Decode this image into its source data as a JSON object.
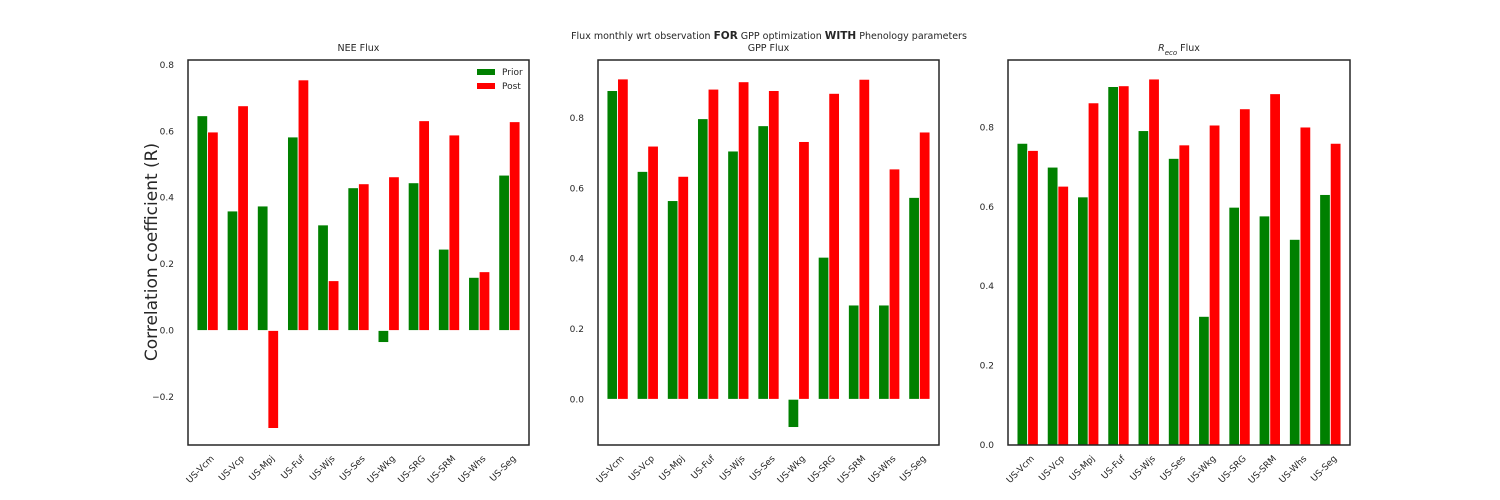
{
  "figure": {
    "suptitle": {
      "parts": [
        {
          "text": "Flux monthly wrt observation ",
          "bold": false
        },
        {
          "text": "FOR",
          "bold": true
        },
        {
          "text": " GPP optimization ",
          "bold": false
        },
        {
          "text": "WITH",
          "bold": true
        },
        {
          "text": " Phenology parameters",
          "bold": false
        }
      ]
    },
    "colors": {
      "prior": "#008000",
      "post": "#ff0000",
      "axes": "#262626"
    }
  },
  "chart_data": [
    {
      "type": "bar",
      "title": "NEE Flux",
      "ylabel": "Correlation coefficient (R)",
      "xlabel": "",
      "categories": [
        "US-Vcm",
        "US-Vcp",
        "US-Mpj",
        "US-Fuf",
        "US-Wjs",
        "US-Ses",
        "US-Wkg",
        "US-SRG",
        "US-SRM",
        "US-Whs",
        "US-Seg"
      ],
      "series": [
        {
          "name": "Prior",
          "color": "#008000",
          "values": [
            0.647,
            0.36,
            0.375,
            0.583,
            0.318,
            0.43,
            -0.036,
            0.445,
            0.245,
            0.16,
            0.468
          ]
        },
        {
          "name": "Post",
          "color": "#ff0000",
          "values": [
            0.598,
            0.677,
            -0.295,
            0.755,
            0.15,
            0.442,
            0.463,
            0.632,
            0.589,
            0.177,
            0.629
          ]
        }
      ],
      "ylim": [
        -0.345,
        0.815
      ],
      "yticks": [
        -0.2,
        0.0,
        0.2,
        0.4,
        0.6,
        0.8
      ],
      "ytick_labels": [
        "−0.2",
        "0.0",
        "0.2",
        "0.4",
        "0.6",
        "0.8"
      ],
      "legend": {
        "placement": "top-right",
        "entries": [
          "Prior",
          "Post"
        ]
      },
      "grid": false
    },
    {
      "type": "bar",
      "title": "GPP Flux",
      "ylabel": "",
      "xlabel": "",
      "categories": [
        "US-Vcm",
        "US-Vcp",
        "US-Mpj",
        "US-Fuf",
        "US-Wjs",
        "US-Ses",
        "US-Wkg",
        "US-SRG",
        "US-SRM",
        "US-Whs",
        "US-Seg"
      ],
      "series": [
        {
          "name": "Prior",
          "color": "#008000",
          "values": [
            0.878,
            0.648,
            0.565,
            0.798,
            0.706,
            0.778,
            -0.08,
            0.404,
            0.268,
            0.268,
            0.574
          ]
        },
        {
          "name": "Post",
          "color": "#ff0000",
          "values": [
            0.911,
            0.72,
            0.634,
            0.882,
            0.903,
            0.878,
            0.733,
            0.87,
            0.91,
            0.655,
            0.76
          ]
        }
      ],
      "ylim": [
        -0.13,
        0.965
      ],
      "yticks": [
        0.0,
        0.2,
        0.4,
        0.6,
        0.8
      ],
      "ytick_labels": [
        "0.0",
        "0.2",
        "0.4",
        "0.6",
        "0.8"
      ],
      "legend": null,
      "grid": false
    },
    {
      "type": "bar",
      "title_parts": [
        {
          "text": "R",
          "italic": true,
          "sub": false
        },
        {
          "text": "eco",
          "italic": true,
          "sub": true
        },
        {
          "text": " Flux",
          "italic": false,
          "sub": false
        }
      ],
      "ylabel": "",
      "xlabel": "",
      "categories": [
        "US-Vcm",
        "US-Vcp",
        "US-Mpj",
        "US-Fuf",
        "US-Wjs",
        "US-Ses",
        "US-Wkg",
        "US-SRG",
        "US-SRM",
        "US-Whs",
        "US-Seg"
      ],
      "series": [
        {
          "name": "Prior",
          "color": "#008000",
          "values": [
            0.76,
            0.7,
            0.625,
            0.903,
            0.792,
            0.722,
            0.324,
            0.599,
            0.577,
            0.518,
            0.631
          ]
        },
        {
          "name": "Post",
          "color": "#ff0000",
          "values": [
            0.742,
            0.652,
            0.862,
            0.905,
            0.922,
            0.756,
            0.806,
            0.847,
            0.885,
            0.801,
            0.76
          ]
        }
      ],
      "ylim": [
        0.0,
        0.97
      ],
      "yticks": [
        0.0,
        0.2,
        0.4,
        0.6,
        0.8
      ],
      "ytick_labels": [
        "0.0",
        "0.2",
        "0.4",
        "0.6",
        "0.8"
      ],
      "legend": null,
      "grid": false
    }
  ]
}
